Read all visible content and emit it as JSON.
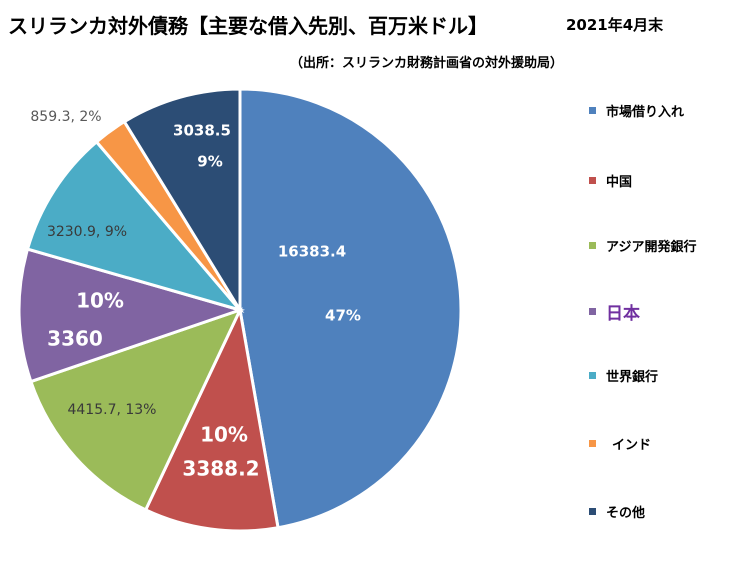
{
  "title": "スリランカ対外債務【主要な借入先別、百万米ドル】",
  "date": "2021年4月末",
  "source": "（出所：スリランカ財務計画省の対外援助局）",
  "chart_data": {
    "type": "pie",
    "start": "12 o'clock",
    "direction": "clockwise",
    "slices": [
      {
        "name": "市場借り入れ",
        "value": 16383.4,
        "percent": 47,
        "color": "#4f81bd",
        "labels": [
          "16383.4",
          "47%"
        ],
        "label_color": "#ffffff"
      },
      {
        "name": "中国",
        "value": 3388.2,
        "percent": 10,
        "color": "#c0504d",
        "labels": [
          "10%",
          "3388.2"
        ],
        "label_color": "#ffffff"
      },
      {
        "name": "アジア開発銀行",
        "value": 4415.7,
        "percent": 13,
        "color": "#9bbb59",
        "labels": [
          "4415.7, 13%"
        ],
        "label_color": "#3a3a3a"
      },
      {
        "name": "日本",
        "value": 3360,
        "percent": 10,
        "color": "#8064a2",
        "labels": [
          "10%",
          "3360"
        ],
        "label_color": "#ffffff"
      },
      {
        "name": "世界銀行",
        "value": 3230.9,
        "percent": 9,
        "color": "#4bacc6",
        "labels": [
          "3230.9, 9%"
        ],
        "label_color": "#3a3a3a"
      },
      {
        "name": "インド",
        "value": 859.3,
        "percent": 2,
        "color": "#f79646",
        "labels": [
          "859.3, 2%"
        ],
        "label_color": "#595959"
      },
      {
        "name": "その他",
        "value": 3038.5,
        "percent": 9,
        "color": "#2c4d75",
        "labels": [
          "3038.5",
          "9%"
        ],
        "label_color": "#ffffff"
      }
    ],
    "legend": {
      "placement": "right",
      "highlight": {
        "name": "日本",
        "color": "#7030a0"
      }
    }
  }
}
